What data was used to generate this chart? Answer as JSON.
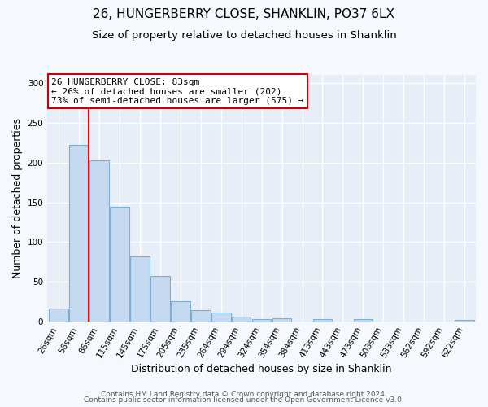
{
  "title": "26, HUNGERBERRY CLOSE, SHANKLIN, PO37 6LX",
  "subtitle": "Size of property relative to detached houses in Shanklin",
  "xlabel": "Distribution of detached houses by size in Shanklin",
  "ylabel": "Number of detached properties",
  "bin_labels": [
    "26sqm",
    "56sqm",
    "86sqm",
    "115sqm",
    "145sqm",
    "175sqm",
    "205sqm",
    "235sqm",
    "264sqm",
    "294sqm",
    "324sqm",
    "354sqm",
    "384sqm",
    "413sqm",
    "443sqm",
    "473sqm",
    "503sqm",
    "533sqm",
    "562sqm",
    "592sqm",
    "622sqm"
  ],
  "bar_heights": [
    16,
    222,
    203,
    145,
    82,
    57,
    26,
    14,
    11,
    6,
    3,
    4,
    0,
    3,
    0,
    3,
    0,
    0,
    0,
    0,
    2
  ],
  "bar_color": "#c5d9f0",
  "bar_edge_color": "#7bafd4",
  "ylim": [
    0,
    310
  ],
  "yticks": [
    0,
    50,
    100,
    150,
    200,
    250,
    300
  ],
  "red_line_index": 1.5,
  "annotation_title": "26 HUNGERBERRY CLOSE: 83sqm",
  "annotation_line1": "← 26% of detached houses are smaller (202)",
  "annotation_line2": "73% of semi-detached houses are larger (575) →",
  "annotation_box_facecolor": "#ffffff",
  "annotation_box_edgecolor": "#cc0000",
  "footer1": "Contains HM Land Registry data © Crown copyright and database right 2024.",
  "footer2": "Contains public sector information licensed under the Open Government Licence v3.0.",
  "background_color": "#f5f8fd",
  "plot_bg_color": "#e8eef8",
  "grid_color": "#ffffff",
  "title_fontsize": 11,
  "subtitle_fontsize": 9.5,
  "axis_label_fontsize": 9,
  "tick_fontsize": 7.5,
  "annotation_fontsize": 8,
  "footer_fontsize": 6.5
}
